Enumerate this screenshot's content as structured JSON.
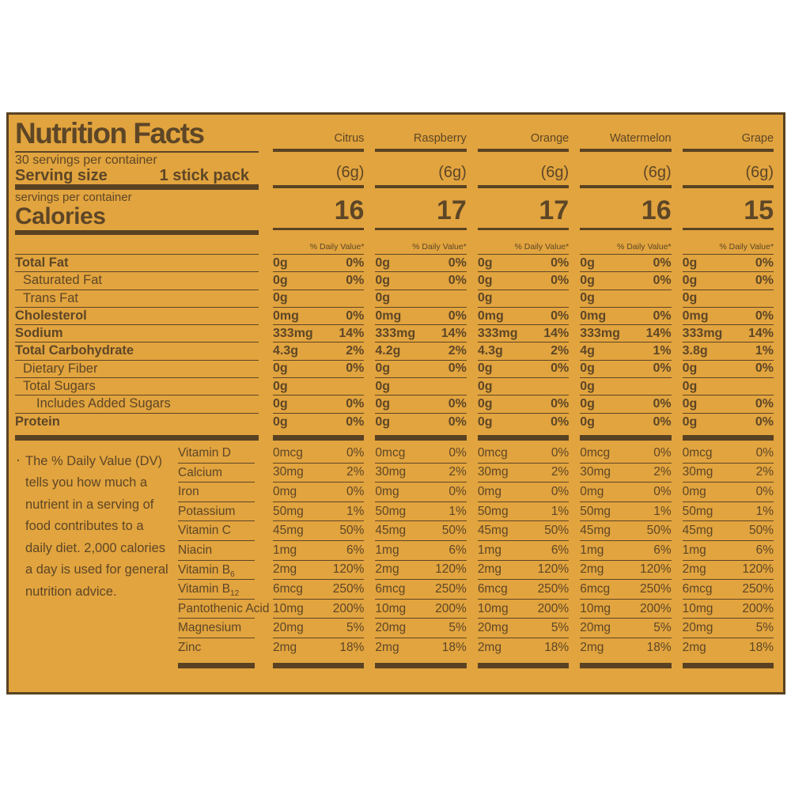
{
  "colors": {
    "background": "#E2A43E",
    "ink": "#5D4627",
    "page": "#FFFFFF"
  },
  "label": {
    "title": "Nutrition Facts",
    "servings_per_container": "30 servings per container",
    "serving_size_label": "Serving size",
    "serving_size_value": "1 stick pack",
    "servings_line": "servings per container",
    "calories_label": "Calories",
    "daily_value_header": "% Daily Value*",
    "footnote_bullet": "·",
    "footnote_lines": [
      "The % Daily Value (DV)",
      "tells you how much a",
      "nutrient in a serving of",
      "food contributes to a",
      "daily diet. 2,000 calories",
      "a day is used for general",
      "nutrition advice."
    ]
  },
  "nutrients": [
    {
      "name": "Total Fat",
      "bold": true,
      "indent": 0
    },
    {
      "name": "Saturated Fat",
      "bold": false,
      "indent": 1
    },
    {
      "name": "Trans Fat",
      "bold": false,
      "indent": 1
    },
    {
      "name": "Cholesterol",
      "bold": true,
      "indent": 0
    },
    {
      "name": "Sodium",
      "bold": true,
      "indent": 0
    },
    {
      "name": "Total Carbohydrate",
      "bold": true,
      "indent": 0
    },
    {
      "name": "Dietary Fiber",
      "bold": false,
      "indent": 1
    },
    {
      "name": "Total Sugars",
      "bold": false,
      "indent": 1
    },
    {
      "name": "Includes Added Sugars",
      "bold": false,
      "indent": 2
    },
    {
      "name": "Protein",
      "bold": true,
      "indent": 0
    }
  ],
  "vitamins": [
    {
      "name": "Vitamin D",
      "sub": ""
    },
    {
      "name": "Calcium",
      "sub": ""
    },
    {
      "name": "Iron",
      "sub": ""
    },
    {
      "name": "Potassium",
      "sub": ""
    },
    {
      "name": "Vitamin C",
      "sub": ""
    },
    {
      "name": "Niacin",
      "sub": ""
    },
    {
      "name": "Vitamin B",
      "sub": "6"
    },
    {
      "name": "Vitamin B",
      "sub": "12"
    },
    {
      "name": "Pantothenic Acid",
      "sub": ""
    },
    {
      "name": "Magnesium",
      "sub": ""
    },
    {
      "name": "Zinc",
      "sub": ""
    }
  ],
  "flavors": [
    {
      "name": "Citrus",
      "serving": "(6g)",
      "calories": "16",
      "nutrient_values": [
        [
          "0g",
          "0%"
        ],
        [
          "0g",
          "0%"
        ],
        [
          "0g",
          ""
        ],
        [
          "0mg",
          "0%"
        ],
        [
          "333mg",
          "14%"
        ],
        [
          "4.3g",
          "2%"
        ],
        [
          "0g",
          "0%"
        ],
        [
          "0g",
          ""
        ],
        [
          "0g",
          "0%"
        ],
        [
          "0g",
          "0%"
        ]
      ],
      "vitamin_values": [
        [
          "0mcg",
          "0%"
        ],
        [
          "30mg",
          "2%"
        ],
        [
          "0mg",
          "0%"
        ],
        [
          "50mg",
          "1%"
        ],
        [
          "45mg",
          "50%"
        ],
        [
          "1mg",
          "6%"
        ],
        [
          "2mg",
          "120%"
        ],
        [
          "6mcg",
          "250%"
        ],
        [
          "10mg",
          "200%"
        ],
        [
          "20mg",
          "5%"
        ],
        [
          "2mg",
          "18%"
        ]
      ]
    },
    {
      "name": "Raspberry",
      "serving": "(6g)",
      "calories": "17",
      "nutrient_values": [
        [
          "0g",
          "0%"
        ],
        [
          "0g",
          "0%"
        ],
        [
          "0g",
          ""
        ],
        [
          "0mg",
          "0%"
        ],
        [
          "333mg",
          "14%"
        ],
        [
          "4.2g",
          "2%"
        ],
        [
          "0g",
          "0%"
        ],
        [
          "0g",
          ""
        ],
        [
          "0g",
          "0%"
        ],
        [
          "0g",
          "0%"
        ]
      ],
      "vitamin_values": [
        [
          "0mcg",
          "0%"
        ],
        [
          "30mg",
          "2%"
        ],
        [
          "0mg",
          "0%"
        ],
        [
          "50mg",
          "1%"
        ],
        [
          "45mg",
          "50%"
        ],
        [
          "1mg",
          "6%"
        ],
        [
          "2mg",
          "120%"
        ],
        [
          "6mcg",
          "250%"
        ],
        [
          "10mg",
          "200%"
        ],
        [
          "20mg",
          "5%"
        ],
        [
          "2mg",
          "18%"
        ]
      ]
    },
    {
      "name": "Orange",
      "serving": "(6g)",
      "calories": "17",
      "nutrient_values": [
        [
          "0g",
          "0%"
        ],
        [
          "0g",
          "0%"
        ],
        [
          "0g",
          ""
        ],
        [
          "0mg",
          "0%"
        ],
        [
          "333mg",
          "14%"
        ],
        [
          "4.3g",
          "2%"
        ],
        [
          "0g",
          "0%"
        ],
        [
          "0g",
          ""
        ],
        [
          "0g",
          "0%"
        ],
        [
          "0g",
          "0%"
        ]
      ],
      "vitamin_values": [
        [
          "0mcg",
          "0%"
        ],
        [
          "30mg",
          "2%"
        ],
        [
          "0mg",
          "0%"
        ],
        [
          "50mg",
          "1%"
        ],
        [
          "45mg",
          "50%"
        ],
        [
          "1mg",
          "6%"
        ],
        [
          "2mg",
          "120%"
        ],
        [
          "6mcg",
          "250%"
        ],
        [
          "10mg",
          "200%"
        ],
        [
          "20mg",
          "5%"
        ],
        [
          "2mg",
          "18%"
        ]
      ]
    },
    {
      "name": "Watermelon",
      "serving": "(6g)",
      "calories": "16",
      "nutrient_values": [
        [
          "0g",
          "0%"
        ],
        [
          "0g",
          "0%"
        ],
        [
          "0g",
          ""
        ],
        [
          "0mg",
          "0%"
        ],
        [
          "333mg",
          "14%"
        ],
        [
          "4g",
          "1%"
        ],
        [
          "0g",
          "0%"
        ],
        [
          "0g",
          ""
        ],
        [
          "0g",
          "0%"
        ],
        [
          "0g",
          "0%"
        ]
      ],
      "vitamin_values": [
        [
          "0mcg",
          "0%"
        ],
        [
          "30mg",
          "2%"
        ],
        [
          "0mg",
          "0%"
        ],
        [
          "50mg",
          "1%"
        ],
        [
          "45mg",
          "50%"
        ],
        [
          "1mg",
          "6%"
        ],
        [
          "2mg",
          "120%"
        ],
        [
          "6mcg",
          "250%"
        ],
        [
          "10mg",
          "200%"
        ],
        [
          "20mg",
          "5%"
        ],
        [
          "2mg",
          "18%"
        ]
      ]
    },
    {
      "name": "Grape",
      "serving": "(6g)",
      "calories": "15",
      "nutrient_values": [
        [
          "0g",
          "0%"
        ],
        [
          "0g",
          "0%"
        ],
        [
          "0g",
          ""
        ],
        [
          "0mg",
          "0%"
        ],
        [
          "333mg",
          "14%"
        ],
        [
          "3.8g",
          "1%"
        ],
        [
          "0g",
          "0%"
        ],
        [
          "0g",
          ""
        ],
        [
          "0g",
          "0%"
        ],
        [
          "0g",
          "0%"
        ]
      ],
      "vitamin_values": [
        [
          "0mcg",
          "0%"
        ],
        [
          "30mg",
          "2%"
        ],
        [
          "0mg",
          "0%"
        ],
        [
          "50mg",
          "1%"
        ],
        [
          "45mg",
          "50%"
        ],
        [
          "1mg",
          "6%"
        ],
        [
          "2mg",
          "120%"
        ],
        [
          "6mcg",
          "250%"
        ],
        [
          "10mg",
          "200%"
        ],
        [
          "20mg",
          "5%"
        ],
        [
          "2mg",
          "18%"
        ]
      ]
    }
  ]
}
